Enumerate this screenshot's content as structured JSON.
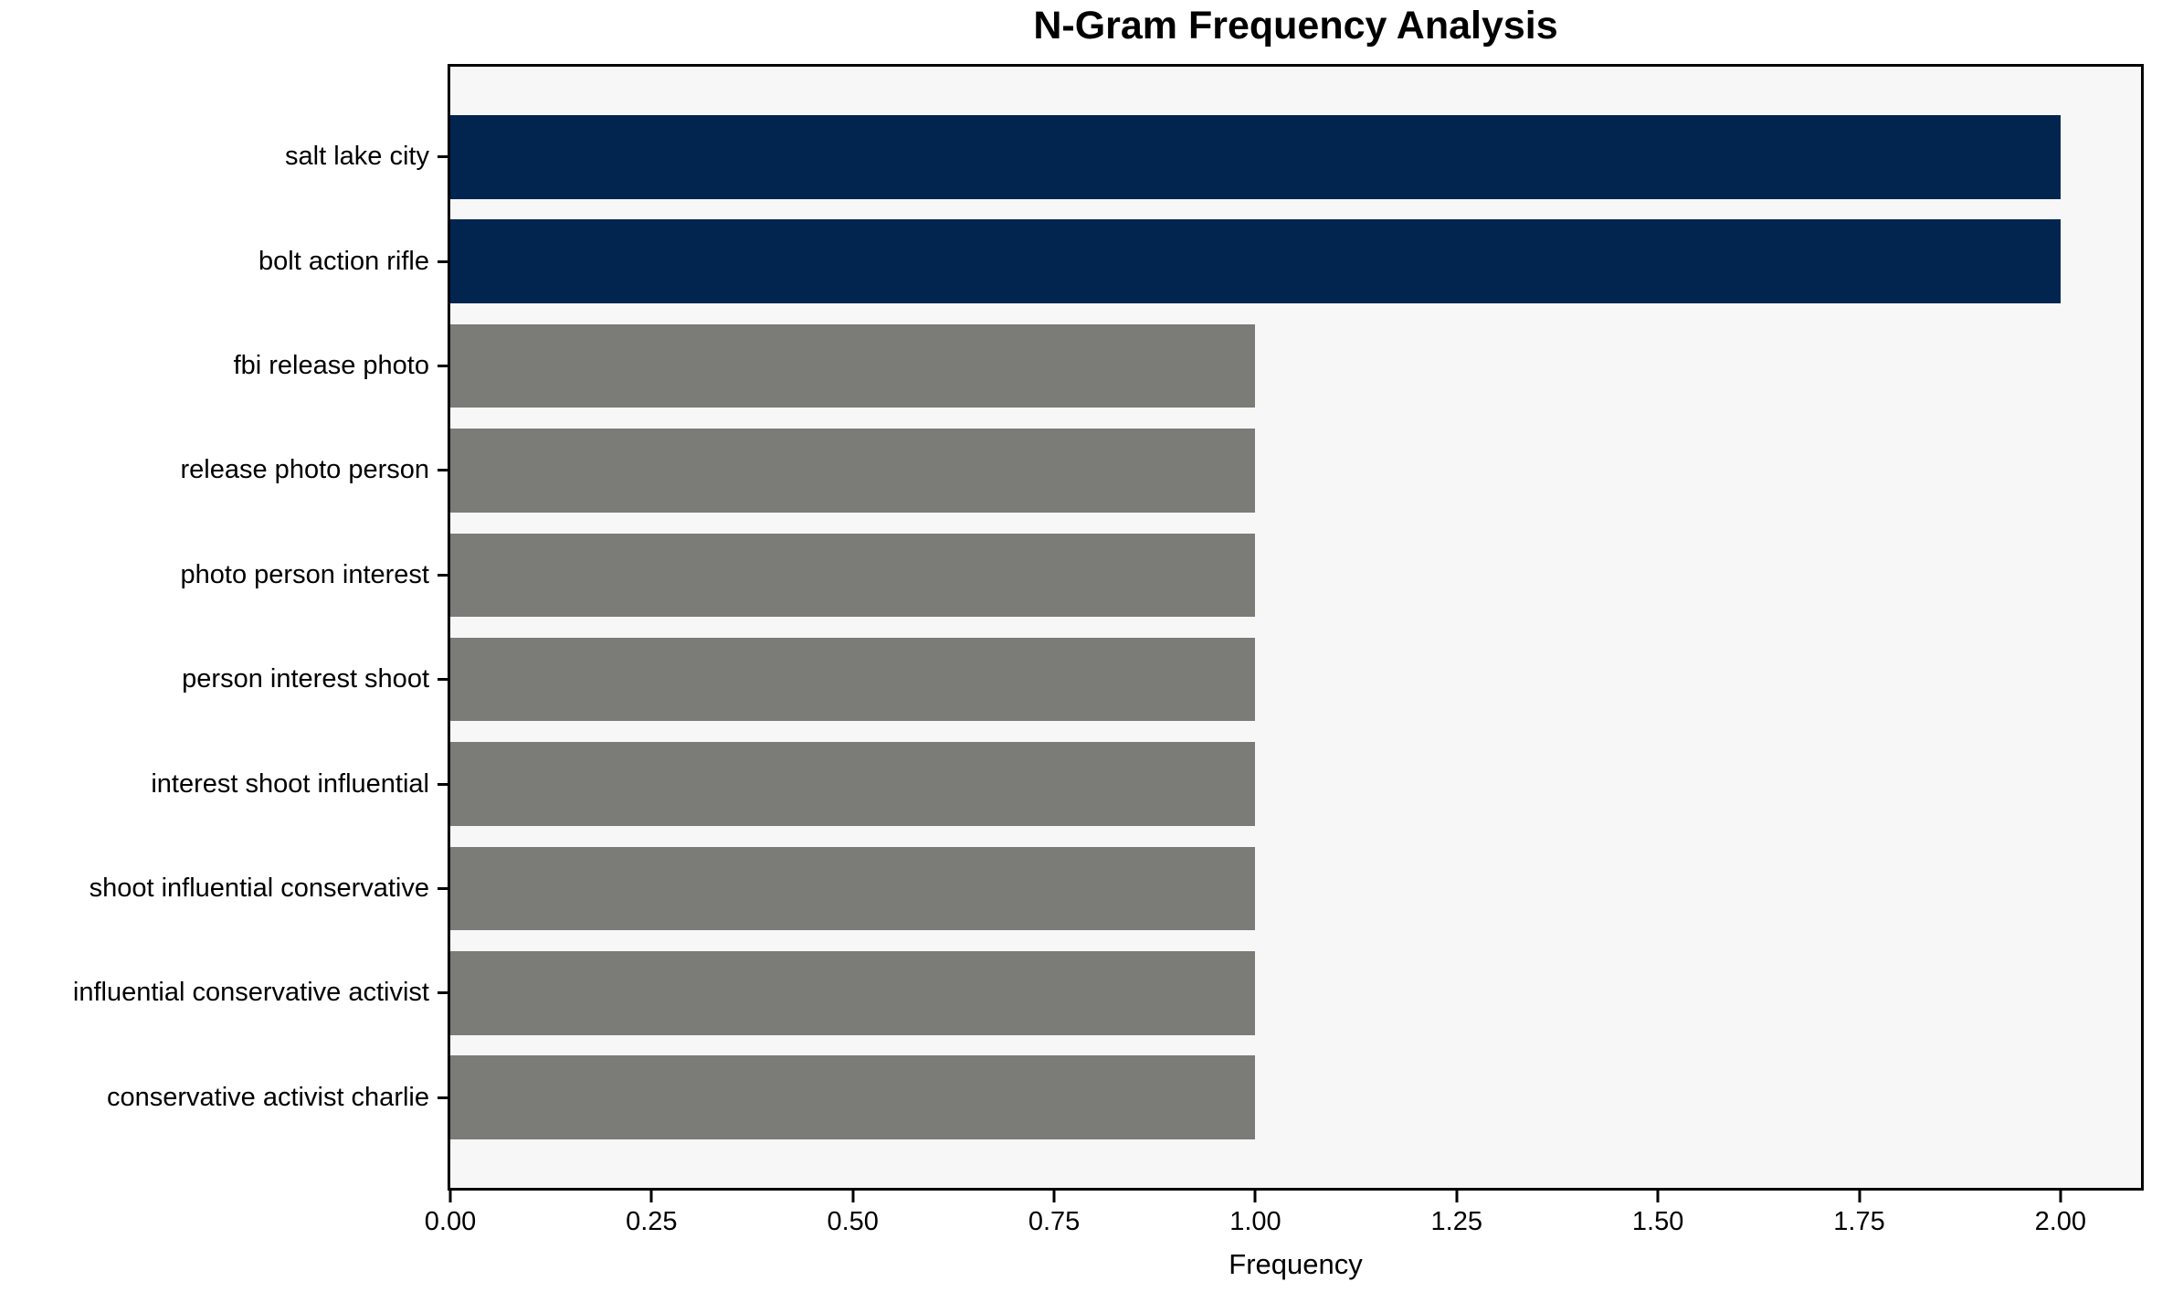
{
  "chart_data": {
    "type": "bar",
    "orientation": "horizontal",
    "title": "N-Gram Frequency Analysis",
    "xlabel": "Frequency",
    "ylabel": "",
    "categories": [
      "salt lake city",
      "bolt action rifle",
      "fbi release photo",
      "release photo person",
      "photo person interest",
      "person interest shoot",
      "interest shoot influential",
      "shoot influential conservative",
      "influential conservative activist",
      "conservative activist charlie"
    ],
    "values": [
      2,
      2,
      1,
      1,
      1,
      1,
      1,
      1,
      1,
      1
    ],
    "bar_colors": [
      "#022550",
      "#022550",
      "#7B7B78",
      "#7B7B78",
      "#7B7B78",
      "#7B7B78",
      "#7B7B78",
      "#7B7B78",
      "#7B7B78",
      "#7B7B78"
    ],
    "xlim": [
      0,
      2.1
    ],
    "xticks": [
      {
        "label": "0.00",
        "value": 0.0
      },
      {
        "label": "0.25",
        "value": 0.25
      },
      {
        "label": "0.50",
        "value": 0.5
      },
      {
        "label": "0.75",
        "value": 0.75
      },
      {
        "label": "1.00",
        "value": 1.0
      },
      {
        "label": "1.25",
        "value": 1.25
      },
      {
        "label": "1.50",
        "value": 1.5
      },
      {
        "label": "1.75",
        "value": 1.75
      },
      {
        "label": "2.00",
        "value": 2.0
      }
    ],
    "grid": false,
    "legend": "none",
    "colors": {
      "highlight": "#022550",
      "default": "#7B7B78",
      "plot_background": "#F7F7F7",
      "figure_background": "#FFFFFF",
      "spine": "#000000",
      "text": "#000000"
    }
  }
}
